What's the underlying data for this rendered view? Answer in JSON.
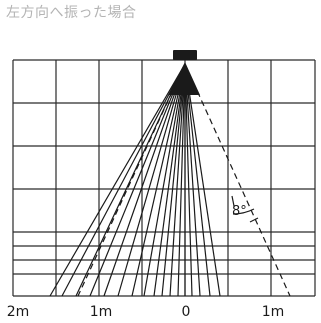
{
  "title": "左方向へ振った場合",
  "angle_label": "8°",
  "x_axis_labels": [
    "2m",
    "1m",
    "0",
    "1m"
  ]
}
